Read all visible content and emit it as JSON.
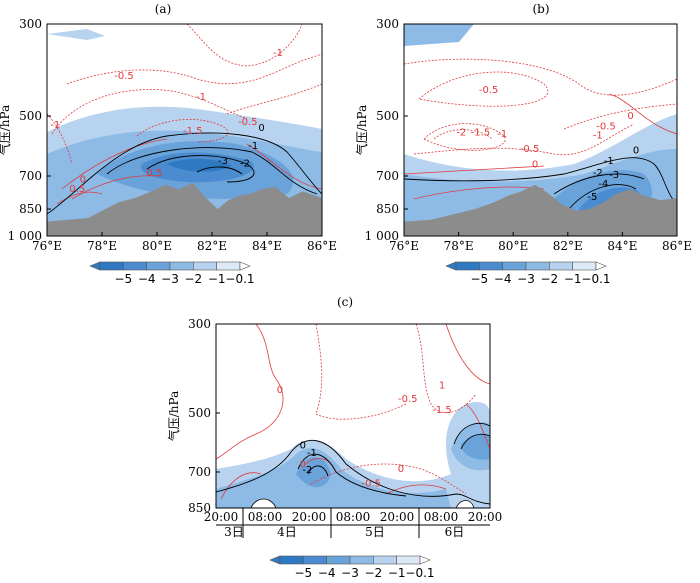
{
  "colors": {
    "shade": [
      "#2f79c2",
      "#4a8ccf",
      "#6aa3da",
      "#8dbbe6",
      "#b7d3ef",
      "#dde9f7"
    ],
    "red_contour": "#e03a3a",
    "black_contour": "#000000",
    "terrain": "#8c8c8c"
  },
  "colorbar": {
    "ticks": [
      "−5",
      "−4",
      "−3",
      "−2",
      "−1",
      "−0.1"
    ]
  },
  "chart_data": [
    {
      "panel": "(a)",
      "type": "contour",
      "ylabel": "气压/hPa",
      "x_ticks": [
        "76°E",
        "78°E",
        "80°E",
        "82°E",
        "84°E",
        "86°E"
      ],
      "xlim": [
        76,
        86
      ],
      "y_ticks": [
        "300",
        "500",
        "700",
        "850",
        "1 000"
      ],
      "y_tick_values": [
        300,
        500,
        700,
        850,
        1000
      ],
      "ylim": [
        1000,
        300
      ],
      "contour_labels": [
        {
          "text": "-1",
          "x": 84.4,
          "y": 370,
          "color": "red"
        },
        {
          "text": "-0.5",
          "x": 78.8,
          "y": 420,
          "color": "red"
        },
        {
          "text": "-1",
          "x": 81.6,
          "y": 465,
          "color": "red"
        },
        {
          "text": "-1",
          "x": 76.3,
          "y": 540,
          "color": "red"
        },
        {
          "text": "-1.5",
          "x": 81.3,
          "y": 560,
          "color": "red"
        },
        {
          "text": "-0.5",
          "x": 83.3,
          "y": 530,
          "color": "red"
        },
        {
          "text": "0",
          "x": 83.8,
          "y": 550,
          "color": "black"
        },
        {
          "text": "-1",
          "x": 83.5,
          "y": 610,
          "color": "black"
        },
        {
          "text": "-3",
          "x": 82.4,
          "y": 660,
          "color": "black"
        },
        {
          "text": "-2",
          "x": 83.2,
          "y": 668,
          "color": "black"
        },
        {
          "text": "0",
          "x": 77.3,
          "y": 730,
          "color": "red"
        },
        {
          "text": "0.5",
          "x": 77.1,
          "y": 773,
          "color": "red"
        },
        {
          "text": "0.5",
          "x": 79.9,
          "y": 700,
          "color": "red"
        }
      ],
      "terrain_profile": [
        [
          76.0,
          920
        ],
        [
          77.5,
          900
        ],
        [
          78.0,
          860
        ],
        [
          78.6,
          820
        ],
        [
          79.2,
          800
        ],
        [
          79.8,
          770
        ],
        [
          80.3,
          740
        ],
        [
          80.8,
          760
        ],
        [
          81.3,
          730
        ],
        [
          81.7,
          790
        ],
        [
          82.2,
          850
        ],
        [
          82.6,
          810
        ],
        [
          83.0,
          790
        ],
        [
          83.4,
          780
        ],
        [
          83.8,
          760
        ],
        [
          84.3,
          750
        ],
        [
          84.8,
          800
        ],
        [
          85.3,
          770
        ],
        [
          86.0,
          800
        ]
      ]
    },
    {
      "panel": "(b)",
      "type": "contour",
      "ylabel": "气压/hPa",
      "x_ticks": [
        "76°E",
        "78°E",
        "80°E",
        "82°E",
        "84°E",
        "86°E"
      ],
      "xlim": [
        76,
        86
      ],
      "y_ticks": [
        "300",
        "500",
        "700",
        "850",
        "1 000"
      ],
      "y_tick_values": [
        300,
        500,
        700,
        850,
        1000
      ],
      "ylim": [
        1000,
        300
      ],
      "contour_labels": [
        {
          "text": "-0.5",
          "x": 79.1,
          "y": 450,
          "color": "red"
        },
        {
          "text": "0",
          "x": 84.3,
          "y": 510,
          "color": "red"
        },
        {
          "text": "-0.5",
          "x": 83.4,
          "y": 545,
          "color": "red"
        },
        {
          "text": "-1",
          "x": 83.1,
          "y": 575,
          "color": "red"
        },
        {
          "text": "-2",
          "x": 78.1,
          "y": 565,
          "color": "red"
        },
        {
          "text": "-1.5",
          "x": 78.8,
          "y": 565,
          "color": "red"
        },
        {
          "text": "-1",
          "x": 79.6,
          "y": 570,
          "color": "red"
        },
        {
          "text": "-0.5",
          "x": 80.6,
          "y": 620,
          "color": "red"
        },
        {
          "text": "0",
          "x": 80.8,
          "y": 672,
          "color": "red"
        },
        {
          "text": "0",
          "x": 84.5,
          "y": 625,
          "color": "black"
        },
        {
          "text": "-1",
          "x": 83.5,
          "y": 660,
          "color": "black"
        },
        {
          "text": "-2",
          "x": 83.1,
          "y": 700,
          "color": "black"
        },
        {
          "text": "-3",
          "x": 83.7,
          "y": 710,
          "color": "black"
        },
        {
          "text": "-4",
          "x": 83.3,
          "y": 750,
          "color": "black"
        },
        {
          "text": "-5",
          "x": 82.9,
          "y": 810,
          "color": "black"
        }
      ],
      "terrain_profile": [
        [
          76.0,
          920
        ],
        [
          77.0,
          910
        ],
        [
          77.8,
          880
        ],
        [
          78.6,
          850
        ],
        [
          79.3,
          820
        ],
        [
          79.8,
          790
        ],
        [
          80.3,
          770
        ],
        [
          80.8,
          740
        ],
        [
          81.3,
          780
        ],
        [
          81.8,
          830
        ],
        [
          82.3,
          860
        ],
        [
          82.8,
          850
        ],
        [
          83.3,
          820
        ],
        [
          83.8,
          780
        ],
        [
          84.3,
          760
        ],
        [
          84.8,
          790
        ],
        [
          85.4,
          810
        ],
        [
          86.0,
          800
        ]
      ]
    },
    {
      "panel": "(c)",
      "type": "contour",
      "ylabel": "气压/hPa",
      "x_ticks": [
        "20:00",
        "08:00",
        "20:00",
        "08:00",
        "20:00",
        "08:00",
        "20:00"
      ],
      "date_labels": [
        "3日",
        "4日",
        "5日",
        "6日"
      ],
      "ylim": [
        850,
        300
      ],
      "y_ticks": [
        "300",
        "500",
        "700",
        "850"
      ],
      "y_tick_values": [
        300,
        500,
        700,
        850
      ],
      "contour_labels": [
        {
          "text": "0",
          "x": 1.4,
          "y": 455,
          "color": "red"
        },
        {
          "text": "1",
          "x": 4.95,
          "y": 445,
          "color": "red"
        },
        {
          "text": "-0.5",
          "x": 4.2,
          "y": 475,
          "color": "red"
        },
        {
          "text": "-1.5",
          "x": 4.95,
          "y": 500,
          "color": "red"
        },
        {
          "text": "0",
          "x": 1.9,
          "y": 620,
          "color": "black"
        },
        {
          "text": "-1",
          "x": 2.1,
          "y": 645,
          "color": "black"
        },
        {
          "text": "0",
          "x": 1.9,
          "y": 685,
          "color": "red"
        },
        {
          "text": "-2",
          "x": 2.0,
          "y": 705,
          "color": "black"
        },
        {
          "text": "0",
          "x": 4.05,
          "y": 700,
          "color": "red"
        },
        {
          "text": "-0.5",
          "x": 3.4,
          "y": 760,
          "color": "red"
        }
      ]
    }
  ]
}
